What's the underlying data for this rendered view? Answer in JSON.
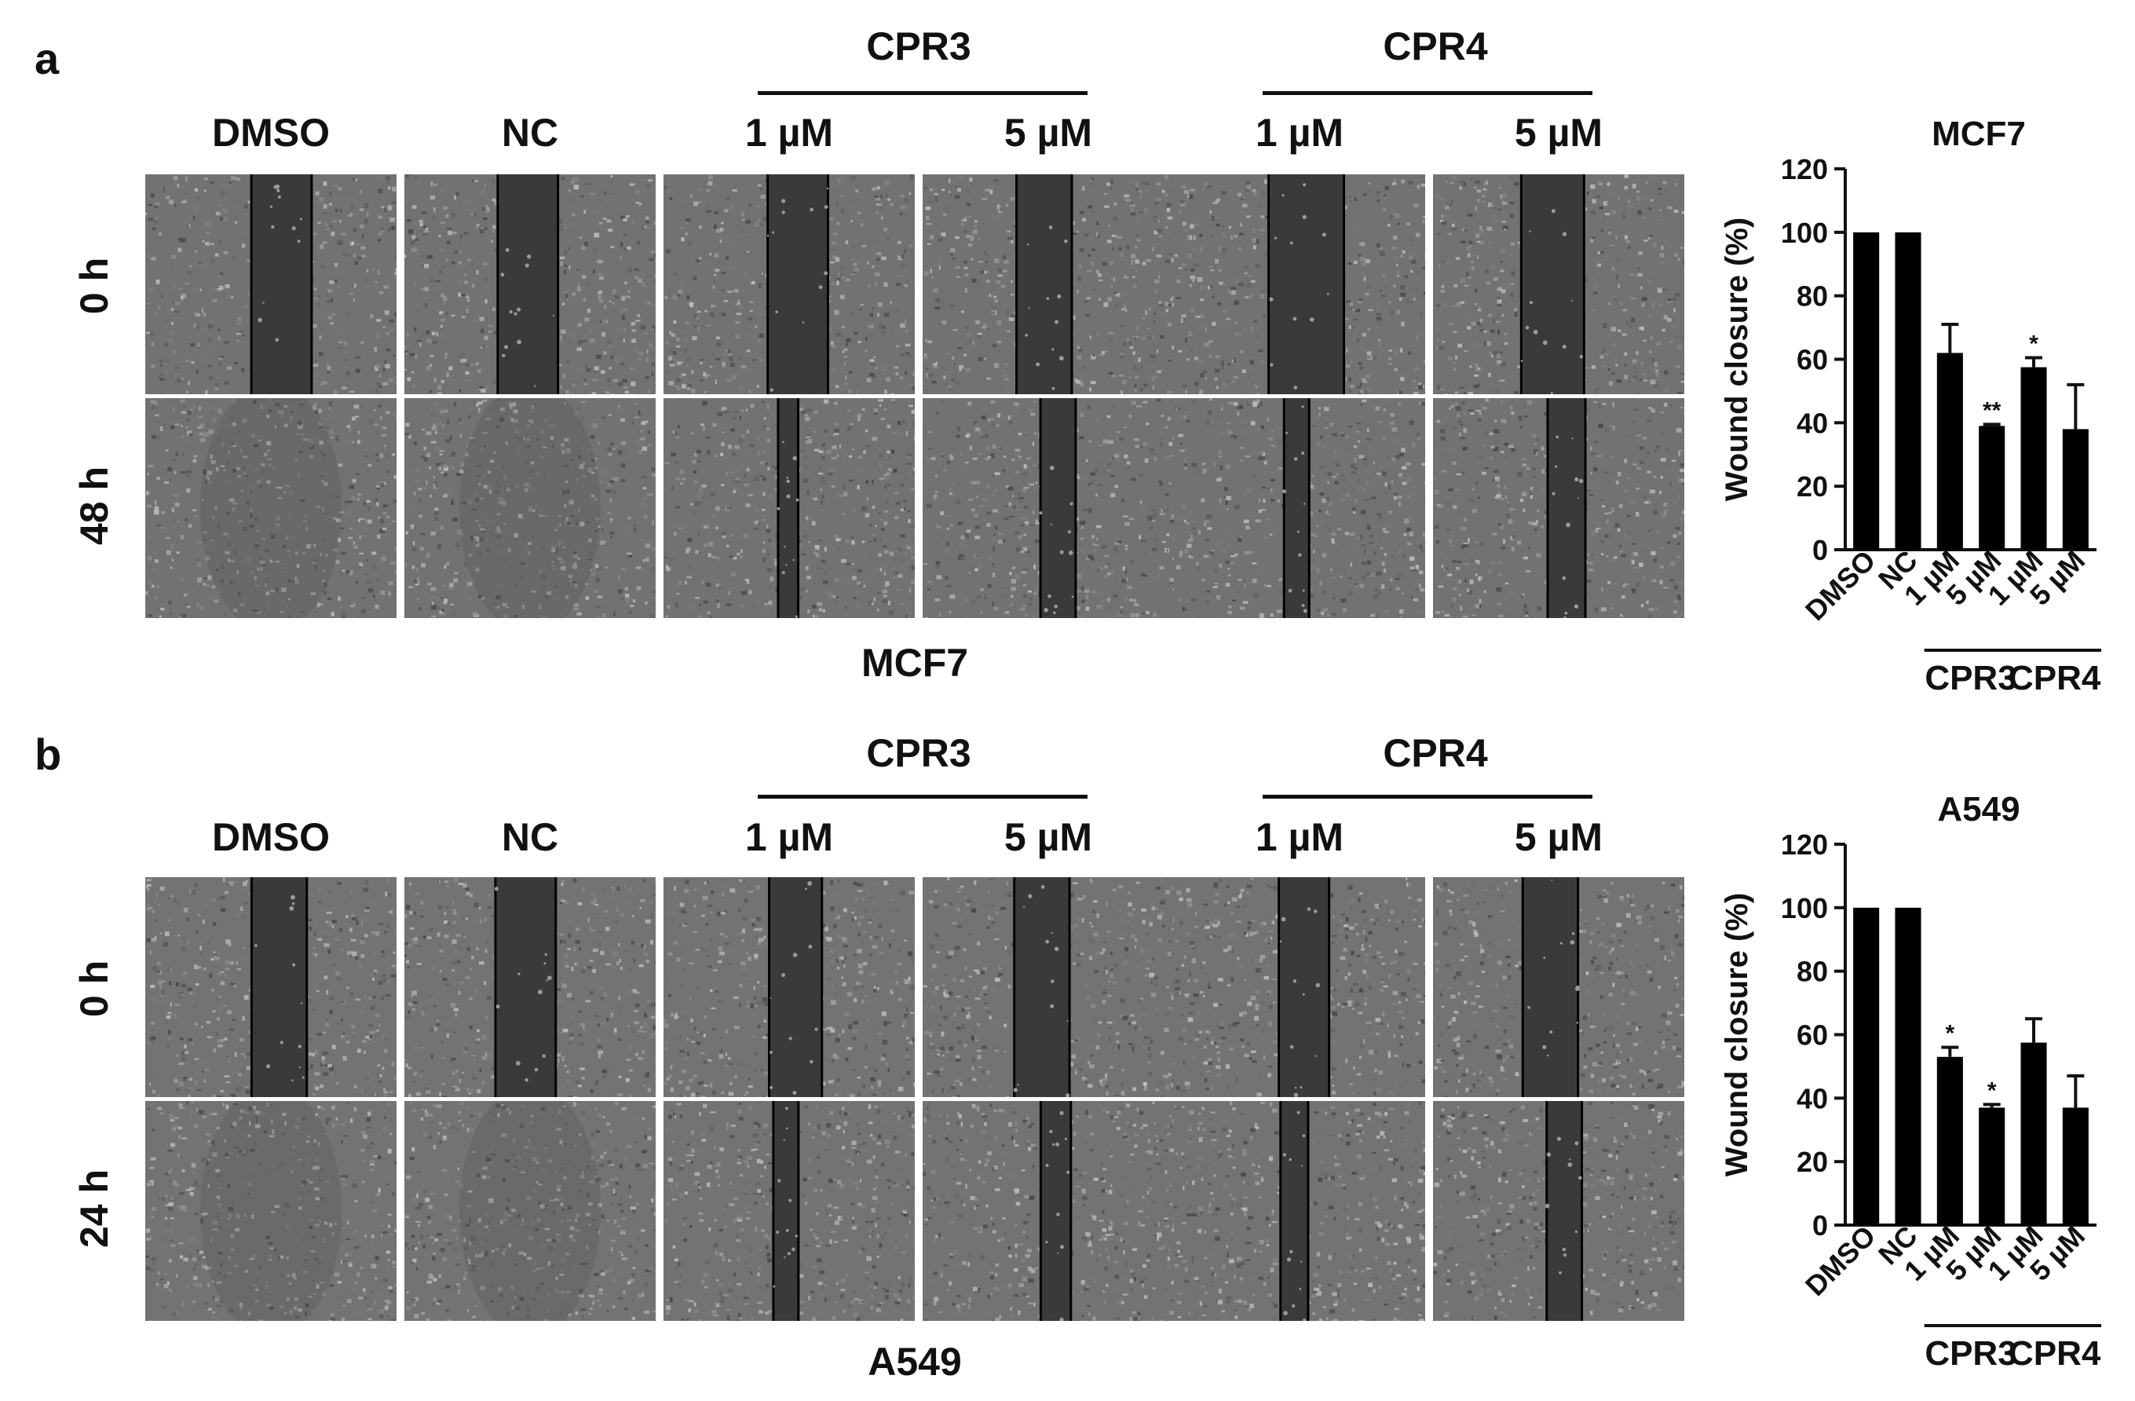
{
  "panels": [
    {
      "letter": "a",
      "cell_line": "MCF7",
      "group_labels": [
        "CPR3",
        "CPR4"
      ],
      "columns": [
        "DMSO",
        "NC",
        "1 µM",
        "5 µM",
        "1 µM",
        "5 µM"
      ],
      "rows": [
        "0 h",
        "48 h"
      ],
      "wound_open_fraction": [
        [
          0.24,
          0.24,
          0.24,
          0.22,
          0.3,
          0.25
        ],
        [
          0.0,
          0.0,
          0.08,
          0.14,
          0.1,
          0.15
        ]
      ]
    },
    {
      "letter": "b",
      "cell_line": "A549",
      "group_labels": [
        "CPR3",
        "CPR4"
      ],
      "columns": [
        "DMSO",
        "NC",
        "1 µM",
        "5 µM",
        "1 µM",
        "5 µM"
      ],
      "rows": [
        "0 h",
        "24 h"
      ],
      "wound_open_fraction": [
        [
          0.22,
          0.24,
          0.21,
          0.22,
          0.2,
          0.22
        ],
        [
          0.0,
          0.0,
          0.1,
          0.12,
          0.11,
          0.14
        ]
      ]
    }
  ],
  "chart_data": [
    {
      "type": "bar",
      "title": "MCF7",
      "ylabel": "Wound closure (%)",
      "ylim": [
        0,
        120
      ],
      "yticks": [
        0,
        20,
        40,
        60,
        80,
        100,
        120
      ],
      "categories": [
        "DMSO",
        "NC",
        "1 µM",
        "5 µM",
        "1 µM",
        "5 µM"
      ],
      "values": [
        100,
        100,
        62,
        39,
        57.5,
        38
      ],
      "errors": [
        0,
        0,
        9,
        0.5,
        3,
        14
      ],
      "significance": [
        "",
        "",
        "",
        "**",
        "*",
        ""
      ],
      "groups": [
        {
          "label": "CPR3",
          "categories": [
            2,
            3
          ]
        },
        {
          "label": "CPR4",
          "categories": [
            4,
            5
          ]
        }
      ],
      "bar_color": "#000000",
      "grid": false
    },
    {
      "type": "bar",
      "title": "A549",
      "ylabel": "Wound closure (%)",
      "ylim": [
        0,
        120
      ],
      "yticks": [
        0,
        20,
        40,
        60,
        80,
        100,
        120
      ],
      "categories": [
        "DMSO",
        "NC",
        "1 µM",
        "5 µM",
        "1 µM",
        "5 µM"
      ],
      "values": [
        100,
        100,
        53,
        37,
        57.5,
        37
      ],
      "errors": [
        0,
        0,
        3,
        1,
        7.5,
        10
      ],
      "significance": [
        "",
        "",
        "*",
        "*",
        "",
        ""
      ],
      "groups": [
        {
          "label": "CPR3",
          "categories": [
            2,
            3
          ]
        },
        {
          "label": "CPR4",
          "categories": [
            4,
            5
          ]
        }
      ],
      "bar_color": "#000000",
      "grid": false
    }
  ]
}
